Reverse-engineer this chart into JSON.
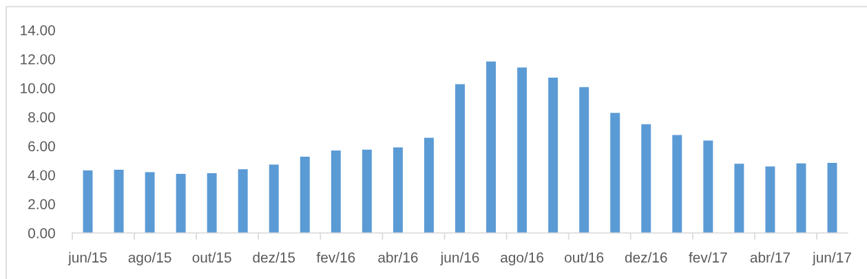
{
  "chart_data": {
    "type": "bar",
    "categories": [
      "jun/15",
      null,
      "ago/15",
      null,
      "out/15",
      null,
      "dez/15",
      null,
      "fev/16",
      null,
      "abr/16",
      null,
      "jun/16",
      null,
      "ago/16",
      null,
      "out/16",
      null,
      "dez/16",
      null,
      "fev/17",
      null,
      "abr/17",
      null,
      "jun/17"
    ],
    "values": [
      4.31,
      4.36,
      4.2,
      4.08,
      4.12,
      4.4,
      4.72,
      5.26,
      5.69,
      5.75,
      5.9,
      6.57,
      10.27,
      11.83,
      11.41,
      10.71,
      10.06,
      8.29,
      7.5,
      6.75,
      6.38,
      4.78,
      4.59,
      4.8,
      4.84
    ],
    "color": "#5b9bd5",
    "ylim": [
      0,
      14
    ],
    "yticks": [
      {
        "value": 0,
        "label": "0.00"
      },
      {
        "value": 2,
        "label": "2.00"
      },
      {
        "value": 4,
        "label": "4.00"
      },
      {
        "value": 6,
        "label": "6.00"
      },
      {
        "value": 8,
        "label": "8.00"
      },
      {
        "value": 10,
        "label": "10.00"
      },
      {
        "value": 12,
        "label": "12.00"
      },
      {
        "value": 14,
        "label": "14.00"
      }
    ]
  }
}
